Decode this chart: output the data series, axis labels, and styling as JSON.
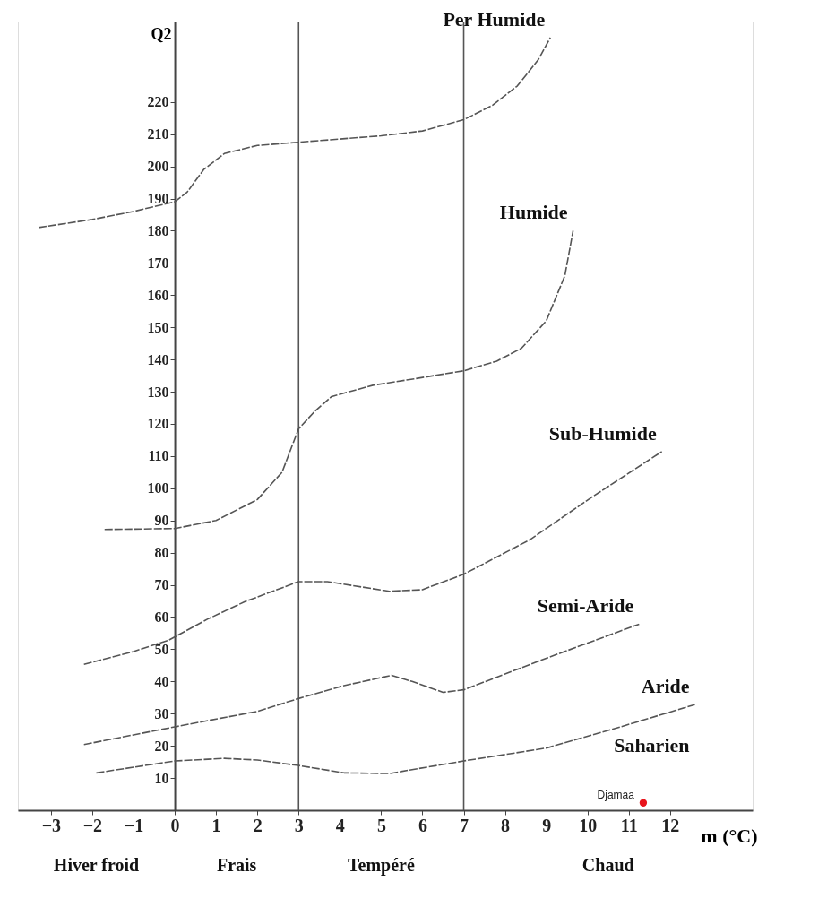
{
  "chart_data": {
    "type": "line",
    "xlabel": "m (°C)",
    "ylabel": "Q2",
    "xlim": [
      -3.8,
      14
    ],
    "ylim": [
      0,
      245
    ],
    "xticks": [
      -3,
      -2,
      -1,
      0,
      1,
      2,
      3,
      4,
      5,
      6,
      7,
      8,
      9,
      10,
      11,
      12
    ],
    "yticks": [
      10,
      20,
      30,
      40,
      50,
      60,
      70,
      80,
      90,
      100,
      110,
      120,
      130,
      140,
      150,
      160,
      170,
      180,
      190,
      200,
      210,
      220
    ],
    "grid": false,
    "line_style": "dashed",
    "series": [
      {
        "color": "#555555",
        "x": [
          -3.3,
          -2,
          -1,
          0,
          0.3,
          0.7,
          1.2,
          2,
          3,
          4,
          5,
          6,
          7,
          7.7,
          8.3,
          8.8,
          9.1
        ],
        "values": [
          181,
          183.5,
          186,
          189,
          192,
          199,
          204,
          206.5,
          207.5,
          208.5,
          209.5,
          211,
          214.5,
          219,
          225,
          233,
          240
        ]
      },
      {
        "color": "#555555",
        "x": [
          -1.7,
          0,
          1,
          2,
          2.6,
          3,
          3.4,
          3.8,
          4.8,
          5.8,
          7,
          7.8,
          8.4,
          9,
          9.45,
          9.65
        ],
        "values": [
          87.2,
          87.5,
          90,
          96.5,
          105,
          118.5,
          124,
          128.5,
          132,
          134,
          136.5,
          139.5,
          143.5,
          152,
          166,
          180
        ]
      },
      {
        "color": "#555555",
        "x": [
          -2.2,
          -1,
          -0.15,
          0.8,
          1.7,
          3,
          3.7,
          5.2,
          6,
          7,
          8.6,
          10.1,
          11.8
        ],
        "values": [
          45.3,
          49.3,
          52.8,
          59.4,
          64.8,
          71,
          71,
          68,
          68.5,
          73.3,
          84,
          97.2,
          111.4
        ]
      },
      {
        "color": "#555555",
        "x": [
          -2.2,
          0,
          2,
          3,
          4.1,
          5.25,
          5.75,
          6.5,
          7,
          9,
          11.25
        ],
        "values": [
          20.4,
          25.9,
          30.7,
          34.7,
          38.7,
          41.9,
          40,
          36.6,
          37.4,
          47.2,
          57.8
        ]
      },
      {
        "color": "#555555",
        "x": [
          -1.9,
          0,
          1.2,
          2,
          3,
          4.1,
          5.2,
          5.75,
          7,
          9,
          10.8,
          12.6
        ],
        "values": [
          11.6,
          15.3,
          16.1,
          15.6,
          13.9,
          11.6,
          11.4,
          12.6,
          15.3,
          19.3,
          25.9,
          32.8
        ]
      },
      {
        "type": "scatter",
        "name": "Djamaa",
        "color": "#e8141c",
        "marker": "circle",
        "x": [
          11.35
        ],
        "values": [
          2.3
        ]
      }
    ],
    "ref_lines": [
      {
        "axis": "x",
        "value": 3,
        "color": "#555555"
      },
      {
        "axis": "x",
        "value": 7,
        "color": "#555555"
      }
    ],
    "annotations": [
      "Per  Humide",
      "Humide",
      "Sub-Humide",
      "Semi-Aride",
      "Aride",
      "Saharien",
      "Hiver froid",
      "Frais",
      "Tempéré",
      "Chaud"
    ]
  }
}
